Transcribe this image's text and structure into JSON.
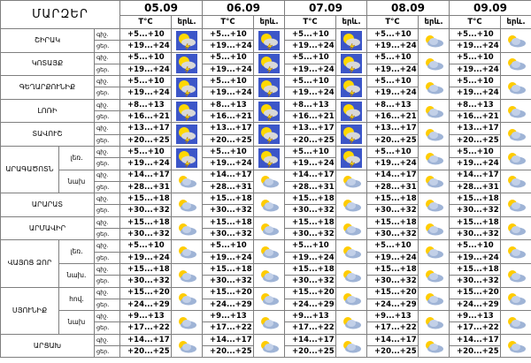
{
  "header": {
    "region": "ՄԱՐԶԵՐ",
    "days": [
      {
        "date": "05.09",
        "temp": "T°C",
        "sky": "երև."
      },
      {
        "date": "06.09",
        "temp": "T°C",
        "sky": "երև."
      },
      {
        "date": "07.09",
        "temp": "T°C",
        "sky": "երև."
      },
      {
        "date": "08.09",
        "temp": "T°C",
        "sky": "երև."
      },
      {
        "date": "09.09",
        "temp": "T°C",
        "sky": "երև."
      }
    ]
  },
  "regions": [
    {
      "name": "ՇԻՐԱԿ",
      "zones": [
        {
          "rows": [
            {
              "label": "գիշ.",
              "temps": [
                "+5...+10",
                "+5...+10",
                "+5...+10",
                "+5...+10",
                "+5...+10"
              ]
            },
            {
              "label": "ցեր.",
              "temps": [
                "+19...+24",
                "+19...+24",
                "+19...+24",
                "+19...+24",
                "+19...+24"
              ]
            }
          ]
        }
      ]
    },
    {
      "name": "ԿՈՏԱՅՔ",
      "zones": [
        {
          "rows": [
            {
              "label": "գիշ.",
              "temps": [
                "+5...+10",
                "+5...+10",
                "+5...+10",
                "+5...+10",
                "+5...+10"
              ]
            },
            {
              "label": "ցեր.",
              "temps": [
                "+19...+24",
                "+19...+24",
                "+19...+24",
                "+19...+24",
                "+19...+24"
              ]
            }
          ]
        }
      ]
    },
    {
      "name": "ԳԵՂԱՐՔՈՒՆԻՔ",
      "zones": [
        {
          "rows": [
            {
              "label": "գիշ.",
              "temps": [
                "+5...+10",
                "+5...+10",
                "+5...+10",
                "+5...+10",
                "+5...+10"
              ]
            },
            {
              "label": "ցեր.",
              "temps": [
                "+19...+24",
                "+19...+24",
                "+19...+24",
                "+19...+24",
                "+19...+24"
              ]
            }
          ]
        }
      ]
    },
    {
      "name": "ԼՈՌԻ",
      "zones": [
        {
          "rows": [
            {
              "label": "գիշ.",
              "temps": [
                "+8...+13",
                "+8...+13",
                "+8...+13",
                "+8...+13",
                "+8...+13"
              ]
            },
            {
              "label": "ցեր.",
              "temps": [
                "+16...+21",
                "+16...+21",
                "+16...+21",
                "+16...+21",
                "+16...+21"
              ]
            }
          ]
        }
      ]
    },
    {
      "name": "ՏԱՎՈՒՇ",
      "zones": [
        {
          "rows": [
            {
              "label": "գիշ.",
              "temps": [
                "+13...+17",
                "+13...+17",
                "+13...+17",
                "+13...+17",
                "+13...+17"
              ]
            },
            {
              "label": "ցեր.",
              "temps": [
                "+20...+25",
                "+20...+25",
                "+20...+25",
                "+20...+25",
                "+20...+25"
              ]
            }
          ]
        }
      ]
    },
    {
      "name": "ԱՐԱԳԱԾՈՏՆ",
      "zones": [
        {
          "name": "լեռ.",
          "rows": [
            {
              "label": "գիշ.",
              "temps": [
                "+5...+10",
                "+5...+10",
                "+5...+10",
                "+5...+10",
                "+5...+10"
              ]
            },
            {
              "label": "ցեր.",
              "temps": [
                "+19...+24",
                "+19...+24",
                "+19...+24",
                "+19...+24",
                "+19...+24"
              ]
            }
          ]
        },
        {
          "name": "նախ",
          "rows": [
            {
              "label": "գիշ.",
              "temps": [
                "+14...+17",
                "+14...+17",
                "+14...+17",
                "+14...+17",
                "+14...+17"
              ]
            },
            {
              "label": "ցեր.",
              "temps": [
                "+28...+31",
                "+28...+31",
                "+28...+31",
                "+28...+31",
                "+28...+31"
              ]
            }
          ]
        }
      ]
    },
    {
      "name": "ԱՐԱՐԱՏ",
      "zones": [
        {
          "rows": [
            {
              "label": "գիշ.",
              "temps": [
                "+15...+18",
                "+15...+18",
                "+15...+18",
                "+15...+18",
                "+15...+18"
              ]
            },
            {
              "label": "ցեր.",
              "temps": [
                "+30...+32",
                "+30...+32",
                "+30...+32",
                "+30...+32",
                "+30...+32"
              ]
            }
          ]
        }
      ]
    },
    {
      "name": "ԱՐՄԱՎԻՐ",
      "zones": [
        {
          "rows": [
            {
              "label": "գիշ.",
              "temps": [
                "+15...+18",
                "+15...+18",
                "+15...+18",
                "+15...+18",
                "+15...+18"
              ]
            },
            {
              "label": "ցեր.",
              "temps": [
                "+30...+32",
                "+30...+32",
                "+30...+32",
                "+30...+32",
                "+30...+32"
              ]
            }
          ]
        }
      ]
    },
    {
      "name": "ՎԱՅՈՑ ՁՈՐ",
      "zones": [
        {
          "name": "լեռ.",
          "rows": [
            {
              "label": "գիշ.",
              "temps": [
                "+5...+10",
                "+5...+10",
                "+5...+10",
                "+5...+10",
                "+5...+10"
              ]
            },
            {
              "label": "ցեր.",
              "temps": [
                "+19...+24",
                "+19...+24",
                "+19...+24",
                "+19...+24",
                "+19...+24"
              ]
            }
          ]
        },
        {
          "name": "նախ.",
          "rows": [
            {
              "label": "գիշ.",
              "temps": [
                "+15...+18",
                "+15...+18",
                "+15...+18",
                "+15...+18",
                "+15...+18"
              ]
            },
            {
              "label": "ցեր.",
              "temps": [
                "+30...+32",
                "+30...+32",
                "+30...+32",
                "+30...+32",
                "+30...+32"
              ]
            }
          ]
        }
      ]
    },
    {
      "name": "ՍՅՈՒՆԻՔ",
      "zones": [
        {
          "name": "հով.",
          "rows": [
            {
              "label": "գիշ.",
              "temps": [
                "+15...+20",
                "+15...+20",
                "+15...+20",
                "+15...+20",
                "+15...+20"
              ]
            },
            {
              "label": "ցեր.",
              "temps": [
                "+24...+29",
                "+24...+29",
                "+24...+29",
                "+24...+29",
                "+24...+29"
              ]
            }
          ]
        },
        {
          "name": "նախ",
          "rows": [
            {
              "label": "գիշ.",
              "temps": [
                "+9...+13",
                "+9...+13",
                "+9...+13",
                "+9...+13",
                "+9...+13"
              ]
            },
            {
              "label": "ցեր.",
              "temps": [
                "+17...+22",
                "+17...+22",
                "+17...+22",
                "+17...+22",
                "+17...+22"
              ]
            }
          ]
        }
      ]
    },
    {
      "name": "ԱՐՑԱԽ",
      "zones": [
        {
          "rows": [
            {
              "label": "գիշ.",
              "temps": [
                "+14...+17",
                "+14...+17",
                "+14...+17",
                "+14...+17",
                "+14...+17"
              ]
            },
            {
              "label": "ցեր.",
              "temps": [
                "+20...+25",
                "+20...+25",
                "+20...+25",
                "+20...+25",
                "+20...+25"
              ]
            }
          ]
        }
      ]
    }
  ]
}
